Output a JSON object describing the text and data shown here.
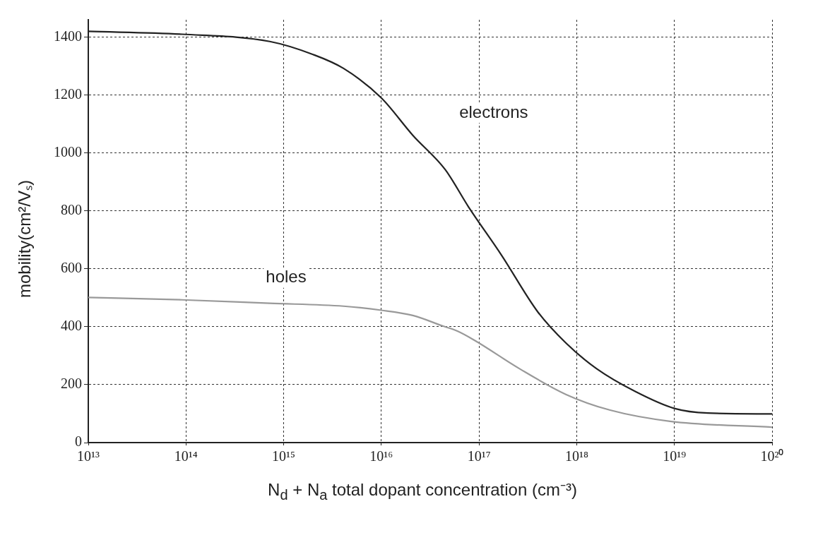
{
  "chart_data": {
    "type": "line",
    "xlabel": "N$_{d}$ + N$_{a}$ total dopant concentration (cm⁻³)",
    "ylabel": "mobility(cm²/Vₛ)",
    "series": [
      {
        "name": "electrons",
        "color": "#222222",
        "x": [
          10000000000000.0,
          91000000000000.0,
          720000000000000.0,
          2000000000000000.0,
          4100000000000000.0,
          1e+16,
          2.1e+16,
          4.5e+16,
          7.8e+16,
          1.7e+17,
          4e+17,
          7.8e+17,
          1.6e+18,
          4e+18,
          1e+19,
          2.2e+19,
          1e+20
        ],
        "values": [
          1420,
          1410,
          1385,
          1340,
          1292,
          1190,
          1061,
          943,
          814,
          647,
          451,
          343,
          255,
          176,
          118,
          102,
          99
        ]
      },
      {
        "name": "holes",
        "color": "#999999",
        "x": [
          10000000000000.0,
          91000000000000.0,
          720000000000000.0,
          4100000000000000.0,
          1e+16,
          2.1e+16,
          4.3e+16,
          6e+16,
          8.9e+16,
          2.6e+17,
          7.8e+17,
          2.2e+18,
          9.3e+18,
          1e+20
        ],
        "values": [
          501,
          493,
          481,
          471,
          457,
          439,
          402,
          385,
          354,
          255,
          166,
          112,
          73,
          53
        ]
      }
    ],
    "log": "x",
    "xlim": [
      10000000000000.0,
      1e+20
    ],
    "xticks": [
      {
        "value": 10000000000000.0,
        "label": "10¹³"
      },
      {
        "value": 100000000000000.0,
        "label": "10¹⁴"
      },
      {
        "value": 1000000000000000.0,
        "label": "10¹⁵"
      },
      {
        "value": 1e+16,
        "label": "10¹⁶"
      },
      {
        "value": 1e+17,
        "label": "10¹⁷"
      },
      {
        "value": 1e+18,
        "label": "10¹⁸"
      },
      {
        "value": 1e+19,
        "label": "10¹⁹"
      },
      {
        "value": 1e+20,
        "label": "10²⁰"
      }
    ],
    "ylim": [
      0,
      1460
    ],
    "yticks": [
      0,
      200,
      400,
      600,
      800,
      1000,
      1200,
      1400
    ],
    "grid": true,
    "legend": false,
    "marker": "none",
    "line_style": "solid"
  }
}
